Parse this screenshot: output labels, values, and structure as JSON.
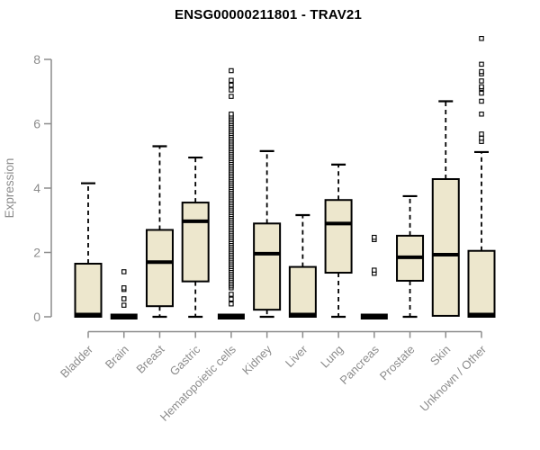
{
  "chart_data": {
    "type": "box",
    "title": "ENSG00000211801 - TRAV21",
    "ylabel": "Expression",
    "xlabel": "",
    "ylim": [
      0,
      8.8
    ],
    "yticks": [
      0,
      2,
      4,
      6,
      8
    ],
    "grid": false,
    "legend": "none",
    "categories": [
      "Bladder",
      "Brain",
      "Breast",
      "Gastric",
      "Hematopoietic cells",
      "Kidney",
      "Liver",
      "Lung",
      "Pancreas",
      "Prostate",
      "Skin",
      "Unknown / Other"
    ],
    "boxes": [
      {
        "category": "Bladder",
        "low": 0,
        "q1": 0,
        "median": 0.07,
        "q3": 1.65,
        "high": 4.15,
        "outliers": []
      },
      {
        "category": "Brain",
        "collapsed": true,
        "value": 0,
        "outliers": [
          0.36,
          0.56,
          0.85,
          0.9,
          1.4
        ]
      },
      {
        "category": "Breast",
        "low": 0,
        "q1": 0.33,
        "median": 1.7,
        "q3": 2.7,
        "high": 5.3,
        "outliers": []
      },
      {
        "category": "Gastric",
        "low": 0,
        "q1": 1.1,
        "median": 2.97,
        "q3": 3.55,
        "high": 4.95,
        "outliers": []
      },
      {
        "category": "Hematopoietic cells",
        "collapsed": true,
        "value": 0,
        "outliers": [
          0.4,
          0.55,
          0.7,
          0.9,
          0.96,
          1.02,
          1.08,
          1.14,
          1.2,
          1.26,
          1.32,
          1.38,
          1.44,
          1.5,
          1.56,
          1.62,
          1.68,
          1.74,
          1.8,
          1.86,
          1.92,
          1.98,
          2.04,
          2.1,
          2.16,
          2.22,
          2.28,
          2.34,
          2.4,
          2.46,
          2.52,
          2.58,
          2.64,
          2.7,
          2.76,
          2.82,
          2.88,
          2.94,
          3.0,
          3.06,
          3.12,
          3.18,
          3.24,
          3.3,
          3.36,
          3.42,
          3.48,
          3.54,
          3.6,
          3.66,
          3.72,
          3.78,
          3.84,
          3.9,
          3.96,
          4.02,
          4.08,
          4.14,
          4.2,
          4.26,
          4.32,
          4.38,
          4.44,
          4.5,
          4.56,
          4.62,
          4.68,
          4.74,
          4.8,
          4.86,
          4.92,
          4.98,
          5.04,
          5.1,
          5.16,
          5.22,
          5.28,
          5.34,
          5.4,
          5.46,
          5.52,
          5.58,
          5.64,
          5.7,
          5.76,
          5.82,
          5.88,
          5.94,
          6.0,
          6.06,
          6.12,
          6.18,
          6.24,
          6.3,
          6.85,
          7.05,
          7.2,
          7.35,
          7.65
        ]
      },
      {
        "category": "Kidney",
        "low": 0,
        "q1": 0.22,
        "median": 1.96,
        "q3": 2.9,
        "high": 5.15,
        "outliers": []
      },
      {
        "category": "Liver",
        "low": 0,
        "q1": 0,
        "median": 0.07,
        "q3": 1.55,
        "high": 3.16,
        "outliers": []
      },
      {
        "category": "Lung",
        "low": 0,
        "q1": 1.37,
        "median": 2.9,
        "q3": 3.63,
        "high": 4.73,
        "outliers": []
      },
      {
        "category": "Pancreas",
        "collapsed": true,
        "value": 0,
        "outliers": [
          1.35,
          1.45,
          2.4,
          2.47
        ]
      },
      {
        "category": "Prostate",
        "low": 0,
        "q1": 1.12,
        "median": 1.85,
        "q3": 2.52,
        "high": 3.75,
        "outliers": []
      },
      {
        "category": "Skin",
        "low": 0.03,
        "q1": 0.03,
        "median": 1.93,
        "q3": 4.28,
        "high": 6.7,
        "outliers": []
      },
      {
        "category": "Unknown / Other",
        "low": 0,
        "q1": 0,
        "median": 0.07,
        "q3": 2.05,
        "high": 5.12,
        "outliers": [
          5.45,
          5.55,
          5.68,
          6.3,
          6.7,
          6.95,
          7.1,
          7.15,
          7.33,
          7.55,
          7.62,
          7.85,
          8.65
        ]
      }
    ],
    "colors": {
      "box_fill": "#EDE7CD",
      "box_border": "#000000",
      "median": "#000000",
      "whisker": "#000000",
      "outlier_stroke": "#000000",
      "outlier_fill": "#FFFFFF",
      "axis": "#8C8C8C",
      "tick_label": "#8C8C8C",
      "title": "#000000",
      "background": "#FFFFFF"
    }
  }
}
